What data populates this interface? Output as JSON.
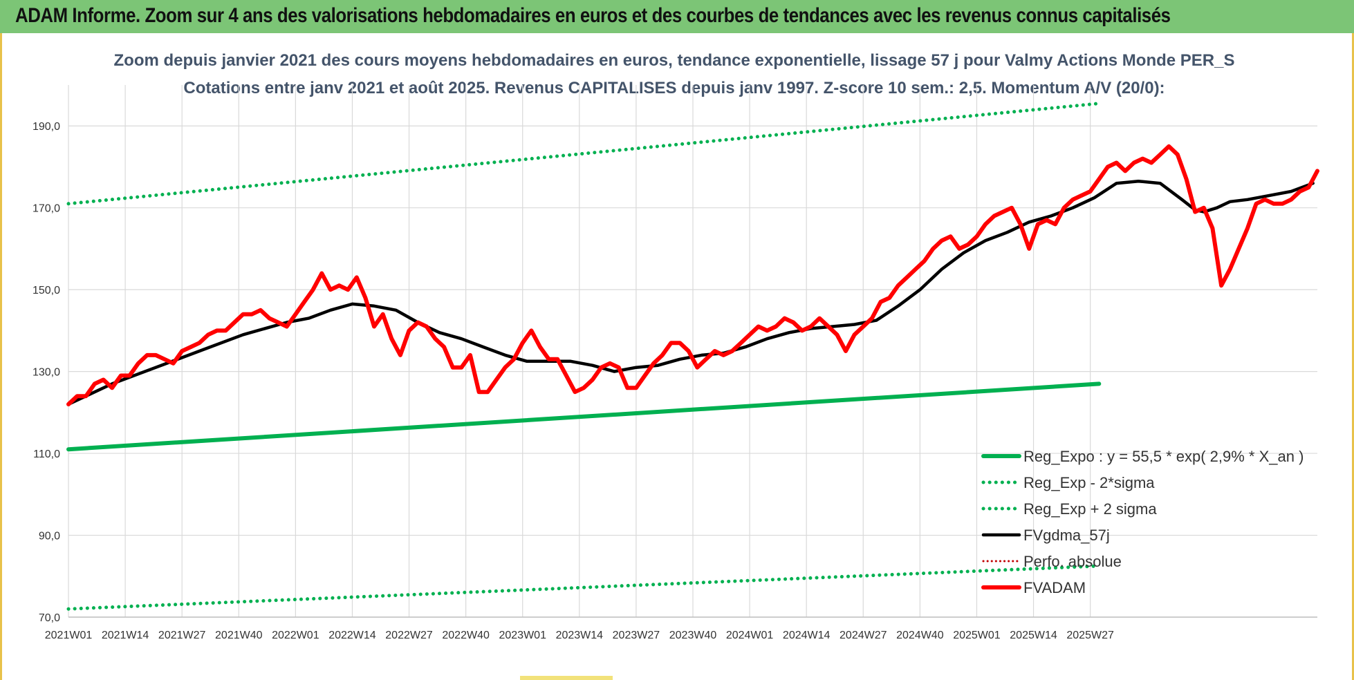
{
  "header": {
    "title": "ADAM Informe. Zoom sur 4 ans des valorisations hebdomadaires en euros et des courbes de tendances avec les revenus connus capitalisés"
  },
  "colors": {
    "header_bg": "#7cc576",
    "green": "#00b050",
    "black": "#000000",
    "red": "#ff0000",
    "dotted_red": "#c00000",
    "title_text": "#44546a"
  },
  "chart_data": {
    "type": "line",
    "title": "Zoom depuis janvier 2021 des cours moyens hebdomadaires en euros, tendance exponentielle, lissage 57 j pour Valmy Actions Monde PER_S",
    "subtitle": "Cotations entre janv 2021 et août 2025. Revenus CAPITALISES depuis janv 1997. Z-score 10 sem.: 2,5. Momentum A/V (20/0):",
    "xlabel": "",
    "ylabel": "",
    "ylim": [
      70,
      200
    ],
    "yticks": [
      "70,0",
      "90,0",
      "110,0",
      "130,0",
      "150,0",
      "170,0",
      "190,0"
    ],
    "x_tick_labels": [
      "2021W01",
      "2021W14",
      "2021W27",
      "2021W40",
      "2022W01",
      "2022W14",
      "2022W27",
      "2022W40",
      "2023W01",
      "2023W14",
      "2023W27",
      "2023W40",
      "2024W01",
      "2024W14",
      "2024W27",
      "2024W40",
      "2025W01",
      "2025W14",
      "2025W27"
    ],
    "grid": true,
    "legend_position": "bottom-right",
    "weeks_total": 237,
    "legend": [
      {
        "name": "Reg_Expo : y = 55,5 * exp( 2,9% *  X_an )",
        "color": "#00b050",
        "style": "solid-thick"
      },
      {
        "name": "Reg_Exp - 2*sigma",
        "color": "#00b050",
        "style": "dotted"
      },
      {
        "name": "Reg_Exp + 2 sigma",
        "color": "#00b050",
        "style": "dotted"
      },
      {
        "name": "FVgdma_57j",
        "color": "#000000",
        "style": "solid"
      },
      {
        "name": "Perfo. absolue",
        "color": "#c00000",
        "style": "dotted-thin"
      },
      {
        "name": "FVADAM",
        "color": "#ff0000",
        "style": "solid-thick"
      }
    ],
    "series": [
      {
        "name": "Reg_Expo : y = 55,5 * exp( 2,9% *  X_an )",
        "points": [
          [
            0,
            111.0
          ],
          [
            236,
            127.0
          ]
        ]
      },
      {
        "name": "Reg_Exp - 2*sigma",
        "points": [
          [
            0,
            72.0
          ],
          [
            236,
            82.5
          ]
        ]
      },
      {
        "name": "Reg_Exp + 2 sigma",
        "points": [
          [
            0,
            171.0
          ],
          [
            236,
            195.5
          ]
        ]
      },
      {
        "name": "FVgdma_57j",
        "points": [
          [
            0,
            122
          ],
          [
            10,
            127
          ],
          [
            20,
            131
          ],
          [
            30,
            135
          ],
          [
            40,
            139
          ],
          [
            50,
            142
          ],
          [
            55,
            143
          ],
          [
            60,
            145
          ],
          [
            65,
            146.5
          ],
          [
            70,
            146
          ],
          [
            75,
            145
          ],
          [
            80,
            142
          ],
          [
            85,
            139.5
          ],
          [
            90,
            138
          ],
          [
            95,
            136
          ],
          [
            100,
            134
          ],
          [
            105,
            132.5
          ],
          [
            110,
            132.5
          ],
          [
            115,
            132.5
          ],
          [
            120,
            131.5
          ],
          [
            125,
            130
          ],
          [
            130,
            131
          ],
          [
            135,
            131.5
          ],
          [
            140,
            133
          ],
          [
            145,
            134
          ],
          [
            150,
            134.5
          ],
          [
            155,
            136
          ],
          [
            160,
            138
          ],
          [
            165,
            139.5
          ],
          [
            170,
            140.5
          ],
          [
            175,
            141
          ],
          [
            180,
            141.5
          ],
          [
            185,
            142.5
          ],
          [
            190,
            146
          ],
          [
            195,
            150
          ],
          [
            200,
            155
          ],
          [
            205,
            159
          ],
          [
            210,
            162
          ],
          [
            215,
            164
          ],
          [
            220,
            166.5
          ],
          [
            225,
            168
          ],
          [
            230,
            170
          ],
          [
            235,
            172.5
          ],
          [
            240,
            176
          ],
          [
            245,
            176.5
          ],
          [
            250,
            176
          ],
          [
            255,
            172
          ],
          [
            258,
            169.5
          ],
          [
            260,
            169
          ],
          [
            263,
            170
          ],
          [
            266,
            171.5
          ],
          [
            270,
            172
          ],
          [
            275,
            173
          ],
          [
            280,
            174
          ],
          [
            285,
            176
          ]
        ]
      },
      {
        "name": "FVADAM",
        "points": [
          [
            0,
            122
          ],
          [
            2,
            124
          ],
          [
            4,
            124
          ],
          [
            6,
            127
          ],
          [
            8,
            128
          ],
          [
            10,
            126
          ],
          [
            12,
            129
          ],
          [
            14,
            129
          ],
          [
            16,
            132
          ],
          [
            18,
            134
          ],
          [
            20,
            134
          ],
          [
            22,
            133
          ],
          [
            24,
            132
          ],
          [
            26,
            135
          ],
          [
            28,
            136
          ],
          [
            30,
            137
          ],
          [
            32,
            139
          ],
          [
            34,
            140
          ],
          [
            36,
            140
          ],
          [
            38,
            142
          ],
          [
            40,
            144
          ],
          [
            42,
            144
          ],
          [
            44,
            145
          ],
          [
            46,
            143
          ],
          [
            48,
            142
          ],
          [
            50,
            141
          ],
          [
            52,
            144
          ],
          [
            54,
            147
          ],
          [
            56,
            150
          ],
          [
            58,
            154
          ],
          [
            60,
            150
          ],
          [
            62,
            151
          ],
          [
            64,
            150
          ],
          [
            66,
            153
          ],
          [
            68,
            148
          ],
          [
            70,
            141
          ],
          [
            72,
            144
          ],
          [
            74,
            138
          ],
          [
            76,
            134
          ],
          [
            78,
            140
          ],
          [
            80,
            142
          ],
          [
            82,
            141
          ],
          [
            84,
            138
          ],
          [
            86,
            136
          ],
          [
            88,
            131
          ],
          [
            90,
            131
          ],
          [
            92,
            134
          ],
          [
            94,
            125
          ],
          [
            96,
            125
          ],
          [
            98,
            128
          ],
          [
            100,
            131
          ],
          [
            102,
            133
          ],
          [
            104,
            137
          ],
          [
            106,
            140
          ],
          [
            108,
            136
          ],
          [
            110,
            133
          ],
          [
            112,
            133
          ],
          [
            114,
            129
          ],
          [
            116,
            125
          ],
          [
            118,
            126
          ],
          [
            120,
            128
          ],
          [
            122,
            131
          ],
          [
            124,
            132
          ],
          [
            126,
            131
          ],
          [
            128,
            126
          ],
          [
            130,
            126
          ],
          [
            132,
            129
          ],
          [
            134,
            132
          ],
          [
            136,
            134
          ],
          [
            138,
            137
          ],
          [
            140,
            137
          ],
          [
            142,
            135
          ],
          [
            144,
            131
          ],
          [
            146,
            133
          ],
          [
            148,
            135
          ],
          [
            150,
            134
          ],
          [
            152,
            135
          ],
          [
            154,
            137
          ],
          [
            156,
            139
          ],
          [
            158,
            141
          ],
          [
            160,
            140
          ],
          [
            162,
            141
          ],
          [
            164,
            143
          ],
          [
            166,
            142
          ],
          [
            168,
            140
          ],
          [
            170,
            141
          ],
          [
            172,
            143
          ],
          [
            174,
            141
          ],
          [
            176,
            139
          ],
          [
            178,
            135
          ],
          [
            180,
            139
          ],
          [
            182,
            141
          ],
          [
            184,
            143
          ],
          [
            186,
            147
          ],
          [
            188,
            148
          ],
          [
            190,
            151
          ],
          [
            192,
            153
          ],
          [
            194,
            155
          ],
          [
            196,
            157
          ],
          [
            198,
            160
          ],
          [
            200,
            162
          ],
          [
            202,
            163
          ],
          [
            204,
            160
          ],
          [
            206,
            161
          ],
          [
            208,
            163
          ],
          [
            210,
            166
          ],
          [
            212,
            168
          ],
          [
            214,
            169
          ],
          [
            216,
            170
          ],
          [
            218,
            166
          ],
          [
            220,
            160
          ],
          [
            222,
            166
          ],
          [
            224,
            167
          ],
          [
            226,
            166
          ],
          [
            228,
            170
          ],
          [
            230,
            172
          ],
          [
            232,
            173
          ],
          [
            234,
            174
          ],
          [
            236,
            177
          ],
          [
            238,
            180
          ],
          [
            240,
            181
          ],
          [
            242,
            179
          ],
          [
            244,
            181
          ],
          [
            246,
            182
          ],
          [
            248,
            181
          ],
          [
            250,
            183
          ],
          [
            252,
            185
          ],
          [
            254,
            183
          ],
          [
            256,
            177
          ],
          [
            258,
            169
          ],
          [
            260,
            170
          ],
          [
            262,
            165
          ],
          [
            264,
            151
          ],
          [
            266,
            155
          ],
          [
            268,
            160
          ],
          [
            270,
            165
          ],
          [
            272,
            171
          ],
          [
            274,
            172
          ],
          [
            276,
            171
          ],
          [
            278,
            171
          ],
          [
            280,
            172
          ],
          [
            282,
            174
          ],
          [
            284,
            175
          ],
          [
            286,
            179
          ]
        ]
      }
    ]
  }
}
